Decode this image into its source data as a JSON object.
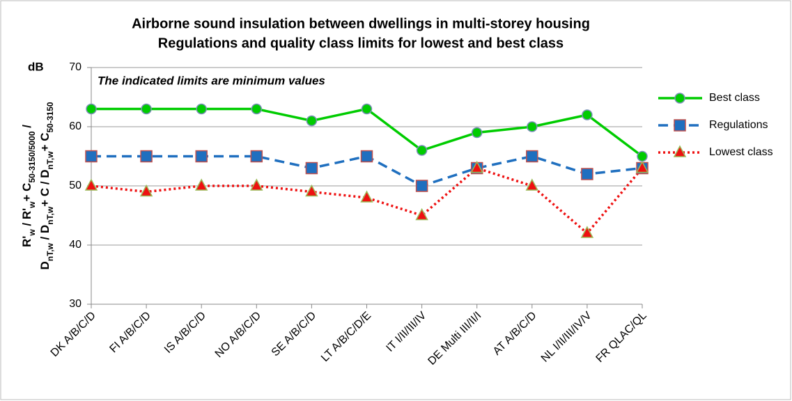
{
  "chart_data": {
    "type": "line",
    "title": [
      "Airborne sound insulation between dwellings in multi-storey housing",
      "Regulations and quality class limits for lowest and best class"
    ],
    "annotation": "The indicated limits are minimum values",
    "y_unit": "dB",
    "y_label": [
      [
        "R'",
        {
          "sub": "w"
        },
        " / R'",
        {
          "sub": "w"
        },
        "+ C",
        {
          "sub": "50-3150/5000"
        },
        " /"
      ],
      [
        "D",
        {
          "sub": "nT,w"
        },
        " / D",
        {
          "sub": "nT,w"
        },
        "+ C / D",
        {
          "sub": "nT,w"
        },
        "+ C",
        {
          "sub": "50-3150"
        }
      ]
    ],
    "categories": [
      "DK A/B/C/D",
      "FI A/B/C/D",
      "IS A/B/C/D",
      "NO A/B/C/D",
      "SE A/B/C/D",
      "LT A/B/C/D/E",
      "IT I/II/III/IV",
      "DE Multi III/II/I",
      "AT A/B/C/D",
      "NL I/II/III/IV/V",
      "FR QLAC/QL"
    ],
    "series": [
      {
        "name": "Best class",
        "color": "#00cc00",
        "marker": "circle",
        "dash": "solid",
        "values": [
          63,
          63,
          63,
          63,
          61,
          63,
          56,
          59,
          60,
          62,
          55
        ]
      },
      {
        "name": "Regulations",
        "color": "#1f6fbf",
        "marker": "square",
        "dash": "dashed",
        "values": [
          55,
          55,
          55,
          55,
          53,
          55,
          50,
          53,
          55,
          52,
          53
        ]
      },
      {
        "name": "Lowest class",
        "color": "#ee1111",
        "marker": "triangle",
        "dash": "dotted",
        "values": [
          50,
          49,
          50,
          50,
          49,
          48,
          45,
          53,
          50,
          42,
          53
        ]
      }
    ],
    "ylim": [
      30,
      70
    ],
    "yticks": [
      30,
      40,
      50,
      60,
      70
    ],
    "grid": true,
    "legend": "right"
  }
}
